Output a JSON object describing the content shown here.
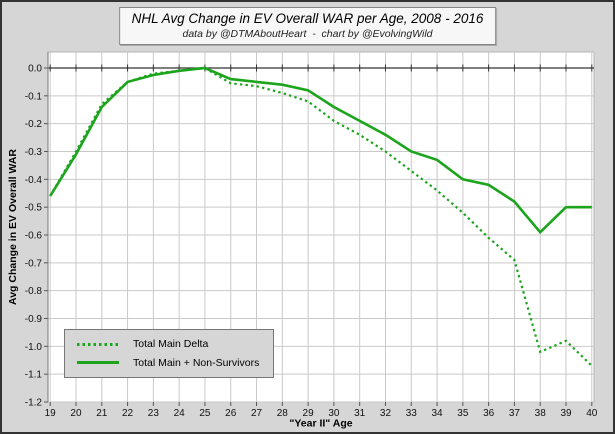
{
  "header": {
    "title": "NHL Avg Change in EV Overall WAR per Age, 2008 - 2016",
    "subtitle": "data by @DTMAboutHeart  -  chart by @EvolvingWild"
  },
  "colors": {
    "series_green": "#1CA51C",
    "background_gray": "#d6d6d6",
    "plot_white": "#ffffff",
    "gridline_gray": "#c9c9c9",
    "axis_dark": "#333333"
  },
  "legend": {
    "items": [
      {
        "label": "Total Main Delta",
        "style": "dotted"
      },
      {
        "label": "Total Main + Non-Survivors",
        "style": "solid"
      }
    ]
  },
  "chart_data": {
    "type": "line",
    "title": "NHL Avg Change in EV Overall WAR per Age, 2008 - 2016",
    "subtitle": "data by @DTMAboutHeart  -  chart by @EvolvingWild",
    "xlabel": "\"Year II\" Age",
    "ylabel": "Avg Change in EV Overall WAR",
    "x": [
      19,
      20,
      21,
      22,
      23,
      24,
      25,
      26,
      27,
      28,
      29,
      30,
      31,
      32,
      33,
      34,
      35,
      36,
      37,
      38,
      39,
      40
    ],
    "series": [
      {
        "name": "Total Main Delta",
        "style": "dotted",
        "values": [
          -0.46,
          -0.3,
          -0.13,
          -0.05,
          -0.02,
          -0.01,
          0.0,
          -0.055,
          -0.065,
          -0.09,
          -0.12,
          -0.19,
          -0.24,
          -0.3,
          -0.37,
          -0.44,
          -0.52,
          -0.61,
          -0.69,
          -1.02,
          -0.98,
          -1.07
        ]
      },
      {
        "name": "Total Main + Non-Survivors",
        "style": "solid",
        "values": [
          -0.46,
          -0.31,
          -0.14,
          -0.05,
          -0.025,
          -0.01,
          0.0,
          -0.04,
          -0.05,
          -0.06,
          -0.08,
          -0.14,
          -0.19,
          -0.24,
          -0.3,
          -0.33,
          -0.4,
          -0.42,
          -0.48,
          -0.59,
          -0.5,
          -0.5
        ]
      }
    ],
    "ylim": [
      -1.2,
      0
    ],
    "ytick_step": 0.1,
    "y_tick_labels": [
      "0.0",
      "-0.1",
      "-0.2",
      "-0.3",
      "-0.4",
      "-0.5",
      "-0.6",
      "-0.7",
      "-0.8",
      "-0.9",
      "-1.0",
      "-1.1",
      "-1.2"
    ],
    "x_tick_labels": [
      "19",
      "20",
      "21",
      "22",
      "23",
      "24",
      "25",
      "26",
      "27",
      "28",
      "29",
      "30",
      "31",
      "32",
      "33",
      "34",
      "35",
      "36",
      "37",
      "38",
      "39",
      "40"
    ],
    "grid": true,
    "legend_position": "lower-left"
  }
}
